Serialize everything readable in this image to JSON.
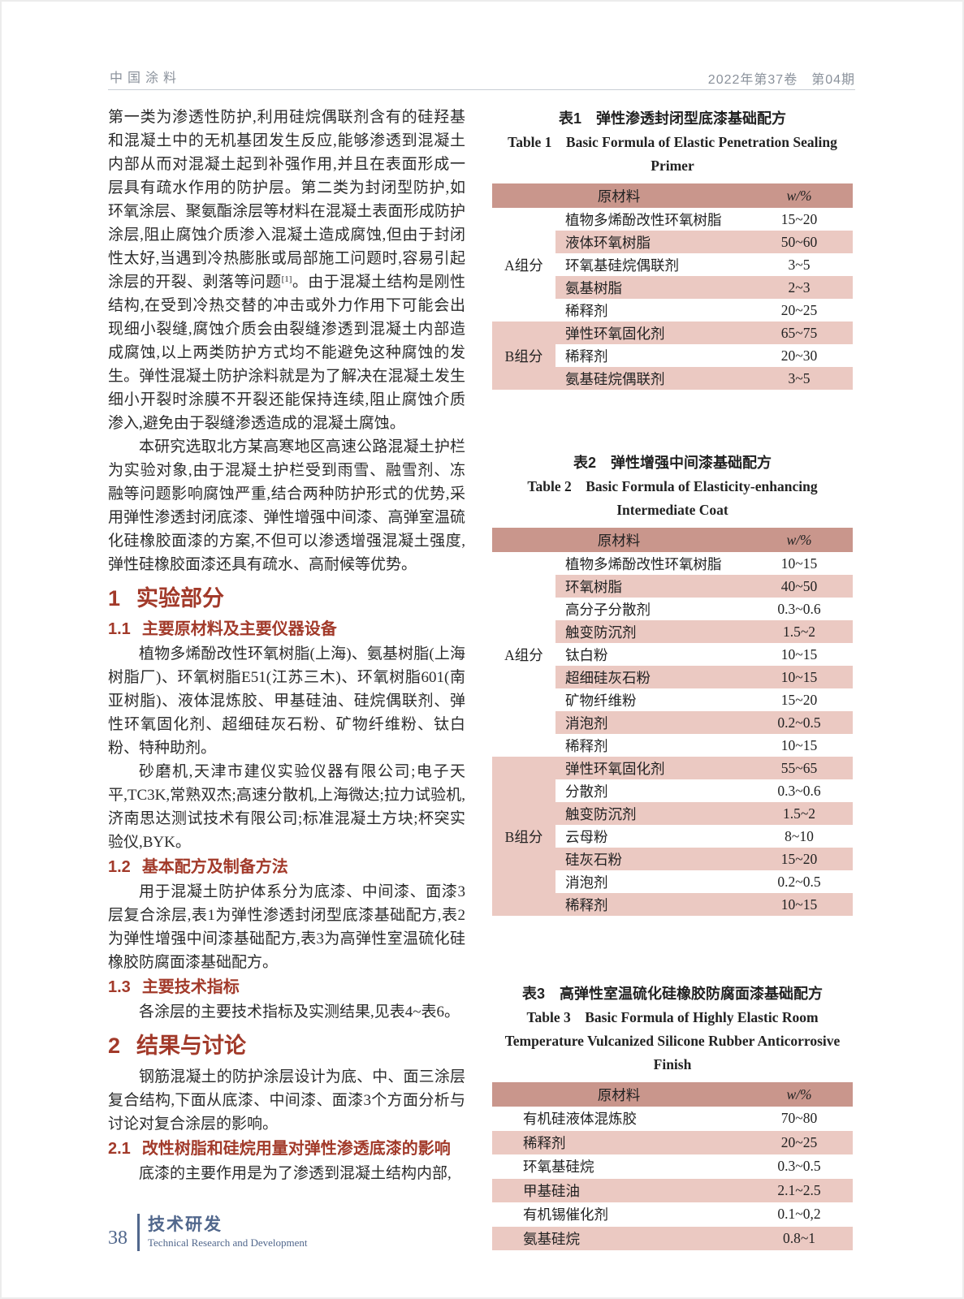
{
  "header": {
    "journal": "中国涂料",
    "issue": "2022年第37卷　第04期"
  },
  "article": {
    "p1a": "第一类为渗透性防护,利用硅烷偶联剂含有的硅羟基和混凝土中的无机基团发生反应,能够渗透到混凝土内部从而对混凝土起到补强作用,并且在表面形成一层具有疏水作用的防护层。第二类为封闭型防护,如环氧涂层、聚氨酯涂层等材料在混凝土表面形成防护涂层,阻止腐蚀介质渗入混凝土造成腐蚀,但由于封闭性太好,当遇到冷热膨胀或局部施工问题时,容易引起涂层的开裂、剥落等问题",
    "p1_sup": "[1]",
    "p1b": "。由于混凝土结构是刚性结构,在受到冷热交替的冲击或外力作用下可能会出现细小裂缝,腐蚀介质会由裂缝渗透到混凝土内部造成腐蚀,以上两类防护方式均不能避免这种腐蚀的发生。弹性混凝土防护涂料就是为了解决在混凝土发生细小开裂时涂膜不开裂还能保持连续,阻止腐蚀介质渗入,避免由于裂缝渗透造成的混凝土腐蚀。",
    "p2": "本研究选取北方某高寒地区高速公路混凝土护栏为实验对象,由于混凝土护栏受到雨雪、融雪剂、冻融等问题影响腐蚀严重,结合两种防护形式的优势,采用弹性渗透封闭底漆、弹性增强中间漆、高弹室温硫化硅橡胶面漆的方案,不但可以渗透增强混凝土强度,弹性硅橡胶面漆还具有疏水、高耐候等优势。",
    "s1": {
      "num": "1",
      "title": "实验部分"
    },
    "s1_1": {
      "num": "1.1",
      "title": "主要原材料及主要仪器设备"
    },
    "p3": "植物多烯酚改性环氧树脂(上海)、氨基树脂(上海树脂厂)、环氧树脂E51(江苏三木)、环氧树脂601(南亚树脂)、液体混炼胶、甲基硅油、硅烷偶联剂、弹性环氧固化剂、超细硅灰石粉、矿物纤维粉、钛白粉、特种助剂。",
    "p4": "砂磨机,天津市建仪实验仪器有限公司;电子天平,TC3K,常熟双杰;高速分散机,上海微达;拉力试验机,济南思达测试技术有限公司;标准混凝土方块;杯突实验仪,BYK。",
    "s1_2": {
      "num": "1.2",
      "title": "基本配方及制备方法"
    },
    "p5": "用于混凝土防护体系分为底漆、中间漆、面漆3层复合涂层,表1为弹性渗透封闭型底漆基础配方,表2为弹性增强中间漆基础配方,表3为高弹性室温硫化硅橡胶防腐面漆基础配方。",
    "s1_3": {
      "num": "1.3",
      "title": "主要技术指标"
    },
    "p6": "各涂层的主要技术指标及实测结果,见表4~表6。",
    "s2": {
      "num": "2",
      "title": "结果与讨论"
    },
    "p7": "钢筋混凝土的防护涂层设计为底、中、面三涂层复合结构,下面从底漆、中间漆、面漆3个方面分析与讨论对复合涂层的影响。",
    "s2_1": {
      "num": "2.1",
      "title": "改性树脂和硅烷用量对弹性渗透底漆的影响"
    },
    "p8": "底漆的主要作用是为了渗透到混凝土结构内部,"
  },
  "tables": [
    {
      "title_zh": "表1　弹性渗透封闭型底漆基础配方",
      "title_en": "Table 1　Basic Formula of Elastic Penetration Sealing Primer",
      "col_material": "原材料",
      "col_value": "w/%",
      "groups": [
        {
          "label": "A组分",
          "rows": [
            [
              "植物多烯酚改性环氧树脂",
              "15~20"
            ],
            [
              "液体环氧树脂",
              "50~60"
            ],
            [
              "环氧基硅烷偶联剂",
              "3~5"
            ],
            [
              "氨基树脂",
              "2~3"
            ],
            [
              "稀释剂",
              "20~25"
            ]
          ]
        },
        {
          "label": "B组分",
          "rows": [
            [
              "弹性环氧固化剂",
              "65~75"
            ],
            [
              "稀释剂",
              "20~30"
            ],
            [
              "氨基硅烷偶联剂",
              "3~5"
            ]
          ]
        }
      ]
    },
    {
      "title_zh": "表2　弹性增强中间漆基础配方",
      "title_en": "Table 2　Basic Formula of Elasticity-enhancing Intermediate Coat",
      "col_material": "原材料",
      "col_value": "w/%",
      "groups": [
        {
          "label": "A组分",
          "rows": [
            [
              "植物多烯酚改性环氧树脂",
              "10~15"
            ],
            [
              "环氧树脂",
              "40~50"
            ],
            [
              "高分子分散剂",
              "0.3~0.6"
            ],
            [
              "触变防沉剂",
              "1.5~2"
            ],
            [
              "钛白粉",
              "10~15"
            ],
            [
              "超细硅灰石粉",
              "10~15"
            ],
            [
              "矿物纤维粉",
              "15~20"
            ],
            [
              "消泡剂",
              "0.2~0.5"
            ],
            [
              "稀释剂",
              "10~15"
            ]
          ]
        },
        {
          "label": "B组分",
          "rows": [
            [
              "弹性环氧固化剂",
              "55~65"
            ],
            [
              "分散剂",
              "0.3~0.6"
            ],
            [
              "触变防沉剂",
              "1.5~2"
            ],
            [
              "云母粉",
              "8~10"
            ],
            [
              "硅灰石粉",
              "15~20"
            ],
            [
              "消泡剂",
              "0.2~0.5"
            ],
            [
              "稀释剂",
              "10~15"
            ]
          ]
        }
      ]
    },
    {
      "title_zh": "表3　高弹性室温硫化硅橡胶防腐面漆基础配方",
      "title_en": "Table 3　Basic Formula of Highly Elastic Room Temperature Vulcanized Silicone Rubber Anticorrosive Finish",
      "col_material": "原材料",
      "col_value": "w/%",
      "groups": [
        {
          "label": "",
          "rows": [
            [
              "有机硅液体混炼胶",
              "70~80"
            ],
            [
              "稀释剂",
              "20~25"
            ],
            [
              "环氧基硅烷",
              "0.3~0.5"
            ],
            [
              "甲基硅油",
              "2.1~2.5"
            ],
            [
              "有机锡催化剂",
              "0.1~0,2"
            ],
            [
              "氨基硅烷",
              "0.8~1"
            ]
          ]
        }
      ]
    }
  ],
  "footer": {
    "page_number": "38",
    "section_zh": "技术研发",
    "section_en": "Technical Research and Development"
  },
  "colors": {
    "heading_red": "#a23a2a",
    "table_header_bg": "#c9968c",
    "table_stripe_bg": "#ebc9c2",
    "footer_blue": "#51678c"
  }
}
